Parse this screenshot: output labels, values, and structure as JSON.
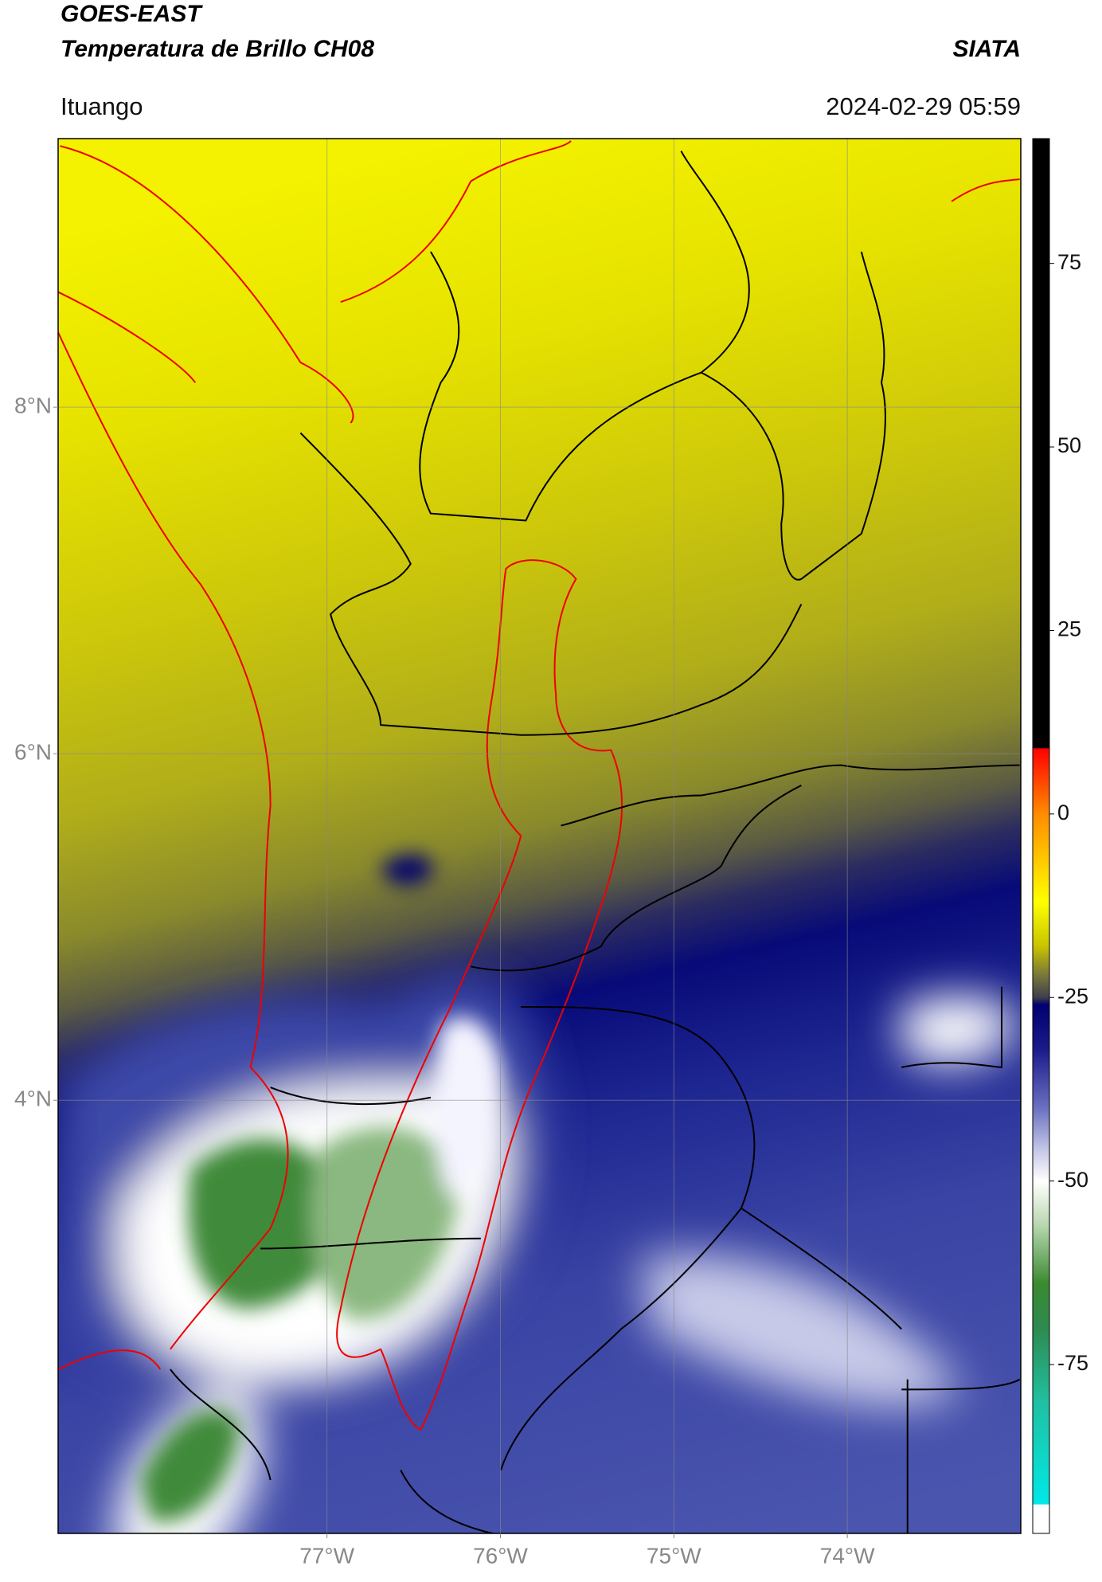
{
  "chart_data": {
    "type": "map",
    "title": "GOES-EAST",
    "subtitle": "Temperatura de Brillo CH08",
    "source": "SIATA",
    "location": "Ituango",
    "datetime": "2024-02-29 05:59",
    "xlim": [
      -78.55,
      -73.0
    ],
    "ylim": [
      1.5,
      9.55
    ],
    "xticks": [
      {
        "value": -77,
        "label": "77°W"
      },
      {
        "value": -76,
        "label": "76°W"
      },
      {
        "value": -75,
        "label": "75°W"
      },
      {
        "value": -74,
        "label": "74°W"
      }
    ],
    "yticks": [
      {
        "value": 8,
        "label": "8°N"
      },
      {
        "value": 6,
        "label": "6°N"
      },
      {
        "value": 4,
        "label": "4°N"
      }
    ],
    "grid": true,
    "colorbar": {
      "lim": [
        -98,
        92
      ],
      "ticks": [
        75,
        50,
        25,
        0,
        -25,
        -50,
        -75
      ],
      "colormap": [
        {
          "value": 92,
          "color": "#000000"
        },
        {
          "value": 9,
          "color": "#000000"
        },
        {
          "value": 8.9,
          "color": "#ff0000"
        },
        {
          "value": 0,
          "color": "#ff8c00"
        },
        {
          "value": -12,
          "color": "#ffff00"
        },
        {
          "value": -18,
          "color": "#c8c400"
        },
        {
          "value": -22,
          "color": "#77773a"
        },
        {
          "value": -25,
          "color": "#3f3f4c"
        },
        {
          "value": -26,
          "color": "#000070"
        },
        {
          "value": -32,
          "color": "#1a1a8a"
        },
        {
          "value": -40,
          "color": "#6a70c0"
        },
        {
          "value": -46,
          "color": "#c8cae8"
        },
        {
          "value": -50,
          "color": "#ffffff"
        },
        {
          "value": -56,
          "color": "#b8d8b0"
        },
        {
          "value": -64,
          "color": "#3a8a30"
        },
        {
          "value": -70,
          "color": "#2e8a50"
        },
        {
          "value": -80,
          "color": "#20c0a0"
        },
        {
          "value": -94,
          "color": "#00e8e8"
        },
        {
          "value": -94.1,
          "color": "#ffffff"
        },
        {
          "value": -98,
          "color": "#ffffff"
        }
      ]
    }
  }
}
